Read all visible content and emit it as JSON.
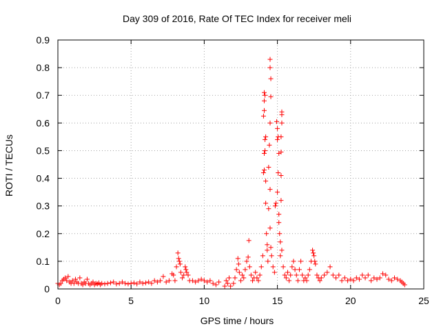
{
  "chart_data": {
    "type": "scatter",
    "title": "Day 309 of 2016, Rate Of TEC Index for receiver meli",
    "xlabel": "GPS time / hours",
    "ylabel": "ROTI / TECUs",
    "xlim": [
      0,
      25
    ],
    "ylim": [
      0,
      0.9
    ],
    "xticks": [
      0,
      5,
      10,
      15,
      20,
      25
    ],
    "xtick_labels": [
      "0",
      "5",
      "10",
      "15",
      "20",
      "25"
    ],
    "yticks": [
      0,
      0.1,
      0.2,
      0.3,
      0.4,
      0.5,
      0.6,
      0.7,
      0.8,
      0.9
    ],
    "ytick_labels": [
      "0",
      "0.1",
      "0.2",
      "0.3",
      "0.4",
      "0.5",
      "0.6",
      "0.7",
      "0.8",
      "0.9"
    ],
    "grid": true,
    "marker": "+",
    "marker_color": "#ff0000",
    "series": [
      {
        "name": "ROTI",
        "points": [
          [
            0.0,
            0.02
          ],
          [
            0.1,
            0.015
          ],
          [
            0.2,
            0.02
          ],
          [
            0.3,
            0.03
          ],
          [
            0.4,
            0.035
          ],
          [
            0.5,
            0.04
          ],
          [
            0.6,
            0.03
          ],
          [
            0.7,
            0.045
          ],
          [
            0.8,
            0.025
          ],
          [
            0.9,
            0.02
          ],
          [
            1.0,
            0.03
          ],
          [
            1.1,
            0.02
          ],
          [
            1.2,
            0.035
          ],
          [
            1.3,
            0.025
          ],
          [
            1.4,
            0.02
          ],
          [
            1.5,
            0.04
          ],
          [
            1.6,
            0.02
          ],
          [
            1.7,
            0.015
          ],
          [
            1.8,
            0.025
          ],
          [
            1.9,
            0.02
          ],
          [
            2.0,
            0.035
          ],
          [
            2.1,
            0.02
          ],
          [
            2.2,
            0.015
          ],
          [
            2.3,
            0.02
          ],
          [
            2.4,
            0.025
          ],
          [
            2.5,
            0.015
          ],
          [
            2.6,
            0.02
          ],
          [
            2.7,
            0.018
          ],
          [
            2.8,
            0.022
          ],
          [
            2.9,
            0.015
          ],
          [
            3.0,
            0.02
          ],
          [
            3.2,
            0.018
          ],
          [
            3.4,
            0.02
          ],
          [
            3.6,
            0.022
          ],
          [
            3.8,
            0.025
          ],
          [
            4.0,
            0.018
          ],
          [
            4.2,
            0.02
          ],
          [
            4.4,
            0.025
          ],
          [
            4.6,
            0.02
          ],
          [
            4.8,
            0.018
          ],
          [
            5.0,
            0.02
          ],
          [
            5.2,
            0.022
          ],
          [
            5.4,
            0.018
          ],
          [
            5.6,
            0.025
          ],
          [
            5.8,
            0.02
          ],
          [
            6.0,
            0.022
          ],
          [
            6.2,
            0.025
          ],
          [
            6.4,
            0.02
          ],
          [
            6.6,
            0.03
          ],
          [
            6.8,
            0.025
          ],
          [
            7.0,
            0.03
          ],
          [
            7.2,
            0.045
          ],
          [
            7.4,
            0.025
          ],
          [
            7.6,
            0.03
          ],
          [
            7.8,
            0.055
          ],
          [
            7.9,
            0.05
          ],
          [
            8.0,
            0.03
          ],
          [
            8.1,
            0.08
          ],
          [
            8.2,
            0.13
          ],
          [
            8.25,
            0.11
          ],
          [
            8.3,
            0.1
          ],
          [
            8.35,
            0.09
          ],
          [
            8.4,
            0.06
          ],
          [
            8.5,
            0.04
          ],
          [
            8.6,
            0.05
          ],
          [
            8.7,
            0.08
          ],
          [
            8.75,
            0.07
          ],
          [
            8.8,
            0.06
          ],
          [
            8.9,
            0.05
          ],
          [
            9.0,
            0.03
          ],
          [
            9.2,
            0.03
          ],
          [
            9.4,
            0.025
          ],
          [
            9.6,
            0.03
          ],
          [
            9.8,
            0.035
          ],
          [
            10.0,
            0.03
          ],
          [
            10.2,
            0.025
          ],
          [
            10.4,
            0.03
          ],
          [
            10.6,
            0.02
          ],
          [
            10.8,
            0.015
          ],
          [
            11.0,
            0.025
          ],
          [
            11.4,
            0.01
          ],
          [
            11.5,
            0.03
          ],
          [
            11.6,
            0.02
          ],
          [
            11.7,
            0.04
          ],
          [
            11.8,
            0.01
          ],
          [
            12.0,
            0.02
          ],
          [
            12.1,
            0.04
          ],
          [
            12.2,
            0.07
          ],
          [
            12.3,
            0.11
          ],
          [
            12.35,
            0.09
          ],
          [
            12.4,
            0.06
          ],
          [
            12.5,
            0.03
          ],
          [
            12.6,
            0.05
          ],
          [
            12.7,
            0.04
          ],
          [
            12.8,
            0.07
          ],
          [
            12.9,
            0.1
          ],
          [
            13.0,
            0.115
          ],
          [
            13.05,
            0.175
          ],
          [
            13.1,
            0.08
          ],
          [
            13.2,
            0.05
          ],
          [
            13.3,
            0.03
          ],
          [
            13.4,
            0.04
          ],
          [
            13.5,
            0.06
          ],
          [
            13.6,
            0.04
          ],
          [
            13.7,
            0.03
          ],
          [
            13.8,
            0.05
          ],
          [
            13.9,
            0.08
          ],
          [
            14.0,
            0.12
          ],
          [
            14.05,
            0.42
          ],
          [
            14.1,
            0.43
          ],
          [
            14.1,
            0.49
          ],
          [
            14.15,
            0.5
          ],
          [
            14.15,
            0.54
          ],
          [
            14.2,
            0.55
          ],
          [
            14.05,
            0.625
          ],
          [
            14.1,
            0.645
          ],
          [
            14.1,
            0.68
          ],
          [
            14.15,
            0.7
          ],
          [
            14.1,
            0.71
          ],
          [
            14.2,
            0.31
          ],
          [
            14.2,
            0.39
          ],
          [
            14.25,
            0.2
          ],
          [
            14.3,
            0.16
          ],
          [
            14.3,
            0.14
          ],
          [
            14.35,
            0.1
          ],
          [
            14.4,
            0.29
          ],
          [
            14.4,
            0.44
          ],
          [
            14.45,
            0.52
          ],
          [
            14.5,
            0.6
          ],
          [
            14.5,
            0.36
          ],
          [
            14.5,
            0.22
          ],
          [
            14.55,
            0.15
          ],
          [
            14.55,
            0.695
          ],
          [
            14.55,
            0.76
          ],
          [
            14.5,
            0.8
          ],
          [
            14.5,
            0.83
          ],
          [
            14.6,
            0.12
          ],
          [
            14.7,
            0.08
          ],
          [
            14.8,
            0.06
          ],
          [
            14.85,
            0.3
          ],
          [
            14.9,
            0.31
          ],
          [
            14.95,
            0.605
          ],
          [
            15.0,
            0.58
          ],
          [
            15.0,
            0.54
          ],
          [
            15.05,
            0.42
          ],
          [
            15.05,
            0.55
          ],
          [
            15.1,
            0.49
          ],
          [
            15.0,
            0.35
          ],
          [
            15.1,
            0.27
          ],
          [
            15.1,
            0.24
          ],
          [
            15.15,
            0.2
          ],
          [
            15.2,
            0.17
          ],
          [
            15.2,
            0.12
          ],
          [
            15.25,
            0.41
          ],
          [
            15.25,
            0.495
          ],
          [
            15.25,
            0.55
          ],
          [
            15.3,
            0.64
          ],
          [
            15.3,
            0.63
          ],
          [
            15.3,
            0.6
          ],
          [
            15.25,
            0.32
          ],
          [
            15.3,
            0.14
          ],
          [
            15.4,
            0.08
          ],
          [
            15.5,
            0.05
          ],
          [
            15.6,
            0.04
          ],
          [
            15.7,
            0.06
          ],
          [
            15.8,
            0.03
          ],
          [
            15.9,
            0.05
          ],
          [
            16.0,
            0.08
          ],
          [
            16.1,
            0.1
          ],
          [
            16.2,
            0.07
          ],
          [
            16.3,
            0.05
          ],
          [
            16.4,
            0.03
          ],
          [
            16.5,
            0.07
          ],
          [
            16.6,
            0.1
          ],
          [
            16.7,
            0.05
          ],
          [
            16.8,
            0.03
          ],
          [
            16.9,
            0.04
          ],
          [
            17.0,
            0.03
          ],
          [
            17.1,
            0.05
          ],
          [
            17.2,
            0.07
          ],
          [
            17.3,
            0.1
          ],
          [
            17.4,
            0.14
          ],
          [
            17.45,
            0.13
          ],
          [
            17.5,
            0.12
          ],
          [
            17.55,
            0.1
          ],
          [
            17.6,
            0.09
          ],
          [
            17.7,
            0.05
          ],
          [
            17.8,
            0.04
          ],
          [
            17.9,
            0.03
          ],
          [
            18.0,
            0.04
          ],
          [
            18.2,
            0.05
          ],
          [
            18.4,
            0.06
          ],
          [
            18.6,
            0.08
          ],
          [
            18.8,
            0.05
          ],
          [
            19.0,
            0.04
          ],
          [
            19.2,
            0.05
          ],
          [
            19.4,
            0.03
          ],
          [
            19.6,
            0.04
          ],
          [
            19.8,
            0.03
          ],
          [
            20.0,
            0.035
          ],
          [
            20.2,
            0.03
          ],
          [
            20.4,
            0.04
          ],
          [
            20.6,
            0.035
          ],
          [
            20.8,
            0.05
          ],
          [
            21.0,
            0.04
          ],
          [
            21.2,
            0.05
          ],
          [
            21.4,
            0.03
          ],
          [
            21.6,
            0.04
          ],
          [
            21.8,
            0.035
          ],
          [
            22.0,
            0.04
          ],
          [
            22.2,
            0.055
          ],
          [
            22.4,
            0.05
          ],
          [
            22.6,
            0.035
          ],
          [
            22.8,
            0.03
          ],
          [
            23.0,
            0.04
          ],
          [
            23.2,
            0.035
          ],
          [
            23.4,
            0.03
          ],
          [
            23.5,
            0.025
          ],
          [
            23.6,
            0.02
          ],
          [
            23.7,
            0.015
          ]
        ]
      }
    ]
  }
}
